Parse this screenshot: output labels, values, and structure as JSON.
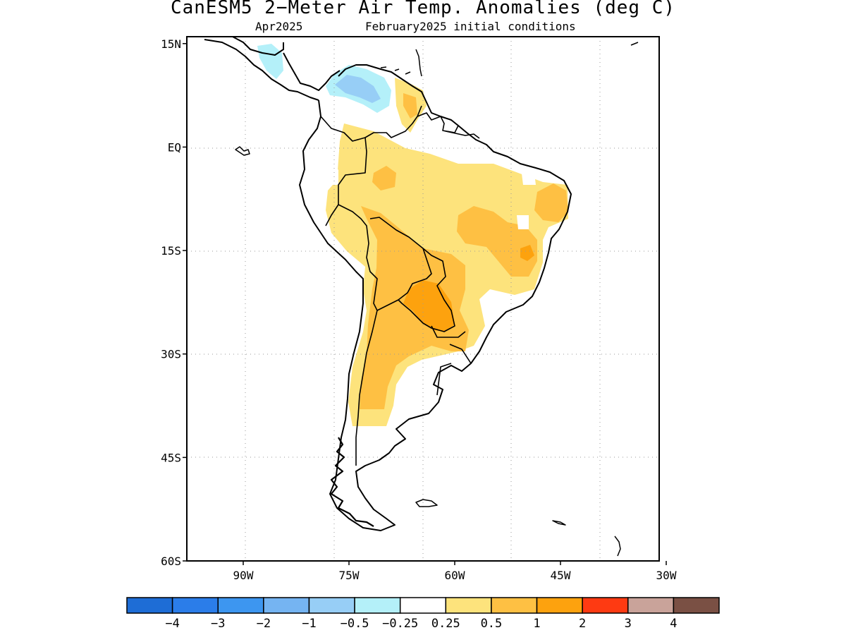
{
  "title": "CanESM5 2−Meter Air Temp. Anomalies (deg C)",
  "subtitle_left": "Apr2025",
  "subtitle_right": "February2025 initial conditions",
  "map": {
    "lon_range": [
      -98,
      -31
    ],
    "lat_range": [
      -60,
      16
    ],
    "lat_ticks": [
      {
        "value": 15,
        "label": "15N"
      },
      {
        "value": 0,
        "label": "EQ"
      },
      {
        "value": -15,
        "label": "15S"
      },
      {
        "value": -30,
        "label": "30S"
      },
      {
        "value": -45,
        "label": "45S"
      },
      {
        "value": -60,
        "label": "60S"
      }
    ],
    "lon_ticks": [
      {
        "value": -90,
        "label": "90W"
      },
      {
        "value": -75,
        "label": "75W"
      },
      {
        "value": -60,
        "label": "60W"
      },
      {
        "value": -45,
        "label": "45W"
      },
      {
        "value": -30,
        "label": "30W"
      }
    ],
    "grid": "dotted"
  },
  "colorbar": {
    "colors": [
      "#1e6dd6",
      "#2b7de9",
      "#3d96f0",
      "#75b4f2",
      "#97cef6",
      "#b4f0f9",
      "#ffffff",
      "#fde37c",
      "#fec043",
      "#fda20e",
      "#fe3a12",
      "#c9a39a",
      "#7a5044"
    ],
    "labels": [
      "−4",
      "−3",
      "−2",
      "−1",
      "−0.5",
      "−0.25",
      "0.25",
      "0.5",
      "1",
      "2",
      "3",
      "4"
    ]
  }
}
